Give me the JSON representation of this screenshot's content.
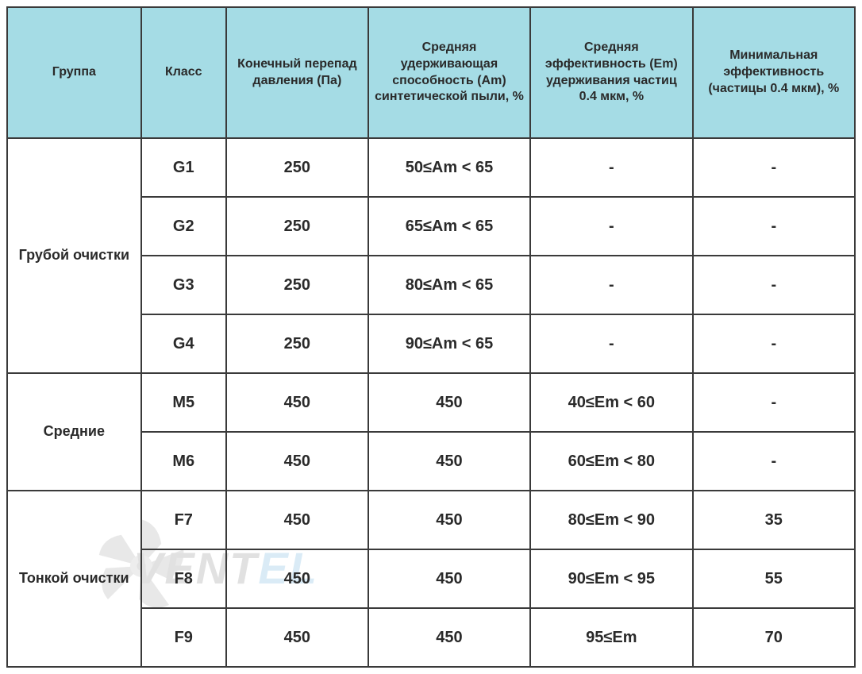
{
  "table": {
    "header_bg": "#a5dce5",
    "border_color": "#3a3a3a",
    "text_color": "#2a2a2a",
    "columns": [
      "Группа",
      "Класс",
      "Конечный перепад давления (Па)",
      "Средняя удерживающая способность (Am) синтетической пыли, %",
      "Средняя эффективность (Em) удерживания частиц 0.4 мкм, %",
      "Минимальная эффективность (частицы 0.4 мкм), %"
    ],
    "groups": [
      {
        "name": "Грубой очистки",
        "rowspan": 4,
        "rows": [
          {
            "class": "G1",
            "pressure": "250",
            "am": "50≤Am < 65",
            "em": "-",
            "min": "-"
          },
          {
            "class": "G2",
            "pressure": "250",
            "am": "65≤Am < 65",
            "em": "-",
            "min": "-"
          },
          {
            "class": "G3",
            "pressure": "250",
            "am": "80≤Am < 65",
            "em": "-",
            "min": "-"
          },
          {
            "class": "G4",
            "pressure": "250",
            "am": "90≤Am < 65",
            "em": "-",
            "min": "-"
          }
        ]
      },
      {
        "name": "Средние",
        "rowspan": 2,
        "rows": [
          {
            "class": "M5",
            "pressure": "450",
            "am": "450",
            "em": "40≤Em < 60",
            "min": "-"
          },
          {
            "class": "M6",
            "pressure": "450",
            "am": "450",
            "em": "60≤Em < 80",
            "min": "-"
          }
        ]
      },
      {
        "name": "Тонкой очистки",
        "rowspan": 3,
        "rows": [
          {
            "class": "F7",
            "pressure": "450",
            "am": "450",
            "em": "80≤Em < 90",
            "min": "35"
          },
          {
            "class": "F8",
            "pressure": "450",
            "am": "450",
            "em": "90≤Em < 95",
            "min": "55"
          },
          {
            "class": "F9",
            "pressure": "450",
            "am": "450",
            "em": "95≤Em",
            "min": "70"
          }
        ]
      }
    ]
  },
  "watermark": {
    "text_gray": "VENT",
    "text_blue": "EL",
    "fan_color": "#9a9a9a"
  }
}
